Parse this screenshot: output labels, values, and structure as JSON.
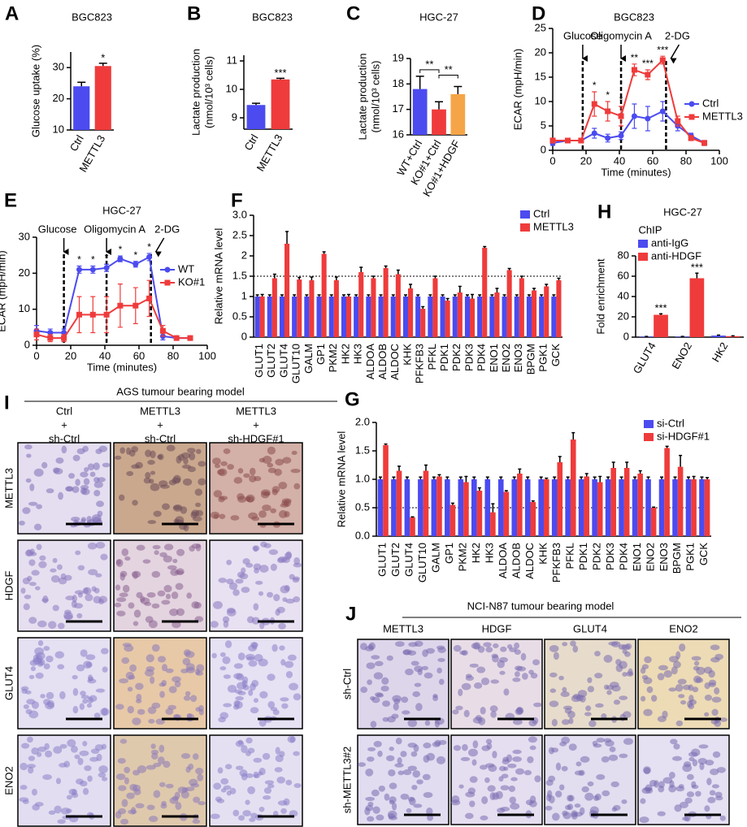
{
  "chart_data": [
    {
      "label": "A",
      "type": "bar",
      "title": "BGC823",
      "ylabel": "Glucose uptake (%)",
      "categories": [
        "Ctrl",
        "METTL3"
      ],
      "values": [
        24,
        30.5
      ],
      "errors": [
        1.3,
        0.9
      ],
      "colors": [
        "#4b4bf0",
        "#ef3b3b"
      ],
      "ylim": [
        10,
        35
      ],
      "yticks": [
        10,
        20,
        30
      ],
      "annotations": [
        {
          "text": "*",
          "over": 1
        }
      ]
    },
    {
      "label": "B",
      "type": "bar",
      "title": "BGC823",
      "ylabel": "Lactate production",
      "ylabel2": "(nmol/10³ cells)",
      "categories": [
        "Ctrl",
        "METTL3"
      ],
      "values": [
        9.45,
        10.35
      ],
      "errors": [
        0.06,
        0.04
      ],
      "colors": [
        "#4b4bf0",
        "#ef3b3b"
      ],
      "ylim": [
        8.6,
        11.2
      ],
      "yticks": [
        9,
        10,
        11
      ],
      "annotations": [
        {
          "text": "***",
          "over": 1
        }
      ]
    },
    {
      "label": "C",
      "type": "bar",
      "title": "HGC-27",
      "ylabel": "Lactate production",
      "ylabel2": "(nmol/10³ cells)",
      "categories": [
        "WT+Ctrl",
        "KO#1+Ctrl",
        "KO#1+HDGF"
      ],
      "values": [
        17.8,
        17.0,
        17.6
      ],
      "errors": [
        0.5,
        0.3,
        0.3
      ],
      "colors": [
        "#4b4bf0",
        "#ef3b3b",
        "#f5a547"
      ],
      "ylim": [
        16,
        19
      ],
      "yticks": [
        16,
        17,
        18,
        19
      ],
      "annotations": [
        {
          "text": "**",
          "span": [
            0,
            1
          ]
        },
        {
          "text": "**",
          "span": [
            1,
            2
          ]
        }
      ]
    },
    {
      "label": "D",
      "type": "line",
      "title": "BGC823",
      "ylabel": "ECAR (mpH/min)",
      "xlabel": "Time (minutes)",
      "x": [
        0,
        9,
        17,
        25,
        33,
        41,
        49,
        57,
        66,
        75,
        83,
        91
      ],
      "series": [
        {
          "name": "Ctrl",
          "color": "#4b4bf0",
          "marker": "circle",
          "values": [
            1.5,
            2,
            2,
            3.5,
            2.5,
            3,
            7,
            6.5,
            8,
            5,
            3,
            1.5
          ],
          "errors": [
            0.5,
            0.3,
            0.3,
            1,
            0.8,
            0.8,
            2.5,
            2.5,
            2,
            1,
            0.5,
            0.5
          ]
        },
        {
          "name": "METTL3",
          "color": "#ef3b3b",
          "marker": "square",
          "values": [
            2,
            2,
            2,
            9.5,
            8,
            7,
            16.5,
            15.5,
            18.5,
            6,
            2.5,
            1.5
          ],
          "errors": [
            0.5,
            0.3,
            0.3,
            2.5,
            2,
            2,
            1.2,
            1,
            0.8,
            1,
            0.5,
            0.5
          ]
        }
      ],
      "xlim": [
        0,
        100
      ],
      "xticks": [
        0,
        20,
        40,
        60,
        80,
        100
      ],
      "ylim": [
        0,
        25
      ],
      "yticks": [
        0,
        5,
        10,
        15,
        20,
        25
      ],
      "events": [
        {
          "text": "Glucose",
          "x": 18
        },
        {
          "text": "Oligomycin A",
          "x": 41
        },
        {
          "text": "2-DG",
          "x": 68
        }
      ],
      "annotations": [
        {
          "text": "*",
          "x": 25
        },
        {
          "text": "*",
          "x": 33
        },
        {
          "text": "*",
          "x": 41
        },
        {
          "text": "**",
          "x": 49
        },
        {
          "text": "***",
          "x": 57
        },
        {
          "text": "***",
          "x": 66
        }
      ]
    },
    {
      "label": "E",
      "type": "line",
      "title": "HGC-27",
      "ylabel": "ECAR (mpH/min)",
      "xlabel": "Time (minutes)",
      "x": [
        0,
        8,
        16,
        25,
        33,
        41,
        49,
        58,
        66,
        74,
        82,
        90
      ],
      "series": [
        {
          "name": "WT",
          "color": "#4b4bf0",
          "marker": "circle",
          "values": [
            4,
            3.5,
            3.5,
            21,
            21,
            21.5,
            24,
            22.5,
            24.5,
            2.5,
            2,
            2
          ],
          "errors": [
            1.5,
            1,
            1,
            1,
            1,
            1,
            0.8,
            0.8,
            1,
            1,
            0.5,
            0.5
          ]
        },
        {
          "name": "KO#1",
          "color": "#ef3b3b",
          "marker": "square",
          "values": [
            3,
            2,
            2,
            8.5,
            8.5,
            8.5,
            11,
            11,
            13,
            4,
            2,
            2
          ],
          "errors": [
            1.5,
            1,
            1,
            5,
            5,
            5,
            6,
            5,
            5,
            1.5,
            0.5,
            0.5
          ]
        }
      ],
      "xlim": [
        0,
        100
      ],
      "xticks": [
        0,
        20,
        40,
        60,
        80,
        100
      ],
      "ylim": [
        0,
        30
      ],
      "yticks": [
        0,
        10,
        20,
        30
      ],
      "events": [
        {
          "text": "Glucose",
          "x": 16
        },
        {
          "text": "Oligomycin A",
          "x": 41
        },
        {
          "text": "2-DG",
          "x": 67
        }
      ],
      "annotations": [
        {
          "text": "*",
          "x": 25
        },
        {
          "text": "*",
          "x": 33
        },
        {
          "text": "*",
          "x": 41
        },
        {
          "text": "*",
          "x": 49
        },
        {
          "text": "*",
          "x": 58
        },
        {
          "text": "*",
          "x": 66
        }
      ]
    },
    {
      "label": "F",
      "type": "groupbar",
      "ylabel": "Relative mRNA level",
      "categories": [
        "GLUT1",
        "GLUT2",
        "GLUT4",
        "GLUT10",
        "GALM",
        "GP1",
        "PKM2",
        "HK2",
        "HK3",
        "ALDOA",
        "ALDOB",
        "ALDOC",
        "KHK",
        "PFKFB3",
        "PFKL",
        "PDK1",
        "PDK2",
        "PDK3",
        "PDK4",
        "ENO1",
        "ENO2",
        "ENO3",
        "BPGM",
        "PGK1",
        "GCK"
      ],
      "highlight": [
        2,
        20
      ],
      "highlight_color": "#e8202a",
      "series": [
        {
          "name": "Ctrl",
          "color": "#4b4bf0",
          "values": [
            1,
            1,
            1,
            1,
            1,
            1,
            1,
            1,
            1,
            1,
            1,
            1,
            1,
            1,
            1,
            1,
            1,
            1,
            1,
            1,
            1,
            1,
            1,
            1,
            1
          ],
          "errors": [
            0.04,
            0.04,
            0.04,
            0.04,
            0.04,
            0.04,
            0.04,
            0.04,
            0.04,
            0.04,
            0.04,
            0.04,
            0.04,
            0.04,
            0.04,
            0.04,
            0.04,
            0.04,
            0.04,
            0.04,
            0.04,
            0.04,
            0.04,
            0.04,
            0.04
          ]
        },
        {
          "name": "METTL3",
          "color": "#ef3b3b",
          "values": [
            1.0,
            1.45,
            2.3,
            1.42,
            1.4,
            2.05,
            1.4,
            1.0,
            1.6,
            1.45,
            1.7,
            1.55,
            1.2,
            0.7,
            1.45,
            0.9,
            1.1,
            0.95,
            2.2,
            1.1,
            1.65,
            1.45,
            1.15,
            1.25,
            1.4
          ],
          "errors": [
            0.05,
            0.1,
            0.3,
            0.05,
            0.08,
            0.05,
            0.08,
            0.05,
            0.12,
            0.05,
            0.05,
            0.1,
            0.1,
            0.05,
            0.05,
            0.05,
            0.15,
            0.1,
            0.03,
            0.1,
            0.04,
            0.05,
            0.05,
            0.05,
            0.05
          ]
        }
      ],
      "ylim": [
        0,
        3.0
      ],
      "yticks": [
        0,
        0.5,
        1,
        1.5,
        2,
        2.5,
        {
          "value": 3,
          "label": "3.0"
        }
      ],
      "refline": 1.5
    },
    {
      "label": "G",
      "type": "groupbar",
      "ylabel": "Relative mRNA level",
      "categories": [
        "GLUT1",
        "GLUT2",
        "GLUT4",
        "GLUT10",
        "GALM",
        "GP1",
        "PKM2",
        "HK2",
        "HK3",
        "ALDOA",
        "ALDOB",
        "ALDOC",
        "KHK",
        "PFKFB3",
        "PFKL",
        "PDK1",
        "PDK2",
        "PDK3",
        "PDK4",
        "ENO1",
        "ENO2",
        "ENO3",
        "BPGM",
        "PGK1",
        "GCK"
      ],
      "highlight": [
        2,
        20
      ],
      "highlight_color": "#e8202a",
      "series": [
        {
          "name": "si-Ctrl",
          "color": "#4b4bf0",
          "values": [
            1,
            1,
            1,
            1,
            1,
            1,
            1,
            1,
            1,
            1,
            1,
            1,
            1,
            1,
            1,
            1,
            1,
            1,
            1,
            1,
            1,
            1,
            1,
            1,
            1
          ],
          "errors": [
            0.04,
            0.04,
            0.04,
            0.04,
            0.04,
            0.04,
            0.04,
            0.04,
            0.04,
            0.04,
            0.04,
            0.04,
            0.04,
            0.04,
            0.04,
            0.04,
            0.04,
            0.04,
            0.04,
            0.04,
            0.04,
            0.04,
            0.04,
            0.04,
            0.04
          ]
        },
        {
          "name": "si-HDGF#1",
          "color": "#ef3b3b",
          "values": [
            1.6,
            1.15,
            0.33,
            1.15,
            1.05,
            0.55,
            0.95,
            0.8,
            0.42,
            0.78,
            1.1,
            0.6,
            1.0,
            1.3,
            1.7,
            1.05,
            0.95,
            1.2,
            1.2,
            1.1,
            0.5,
            1.55,
            1.22,
            1.0,
            1.0
          ],
          "errors": [
            0.02,
            0.08,
            0.01,
            0.1,
            0.03,
            0.03,
            0.1,
            0.05,
            0.15,
            0.02,
            0.08,
            0.02,
            0.02,
            0.1,
            0.12,
            0.05,
            0.1,
            0.1,
            0.1,
            0.05,
            0.01,
            0.03,
            0.2,
            0.05,
            0.03
          ]
        }
      ],
      "ylim": [
        0,
        2.0
      ],
      "yticks": [
        {
          "value": 0,
          "label": "0.0"
        },
        0.5,
        {
          "value": 1,
          "label": "1.0"
        },
        1.5,
        {
          "value": 2,
          "label": "2.0"
        }
      ],
      "refline": 0.5
    },
    {
      "label": "H",
      "type": "groupbar",
      "title": "HGC-27",
      "subtitle": "ChIP",
      "ylabel": "Fold enrichment",
      "categories": [
        "GLUT4",
        "ENO2",
        "HK2"
      ],
      "series": [
        {
          "name": "anti-IgG",
          "color": "#4b4bf0",
          "values": [
            0.5,
            0.5,
            1.5
          ],
          "errors": [
            0.2,
            0.2,
            0.5
          ]
        },
        {
          "name": "anti-HDGF",
          "color": "#ef3b3b",
          "values": [
            22,
            58,
            1
          ],
          "errors": [
            1,
            5,
            0.3
          ]
        }
      ],
      "ylim": [
        0,
        80
      ],
      "yticks": [
        0,
        20,
        40,
        60,
        80
      ],
      "annotations": [
        {
          "text": "***",
          "over": 0
        },
        {
          "text": "***",
          "over": 1
        }
      ]
    }
  ],
  "panel_i": {
    "label": "I",
    "title": "AGS tumour bearing model",
    "columns": [
      [
        "Ctrl",
        "+",
        "sh-Ctrl"
      ],
      [
        "METTL3",
        "+",
        "sh-Ctrl"
      ],
      [
        "METTL3",
        "+",
        "sh-HDGF#1"
      ]
    ],
    "rows": [
      "METTL3",
      "HDGF",
      "GLUT4",
      "ENO2"
    ]
  },
  "panel_j": {
    "label": "J",
    "title": "NCI-N87 tumour bearing model",
    "columns": [
      "METTL3",
      "HDGF",
      "GLUT4",
      "ENO2"
    ],
    "rows": [
      "sh-Ctrl",
      "sh-METTL3#2"
    ]
  }
}
